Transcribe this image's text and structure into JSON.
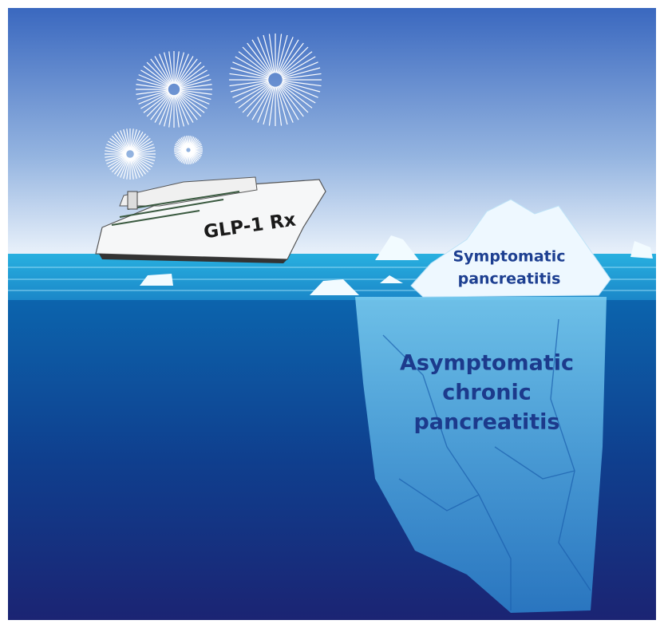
{
  "ship": {
    "label": "GLP-1 Rx"
  },
  "iceberg": {
    "tip_label": [
      "Symptomatic",
      "pancreatitis"
    ],
    "underwater_label": [
      "Asymptomatic",
      "chronic",
      "pancreatitis"
    ]
  }
}
